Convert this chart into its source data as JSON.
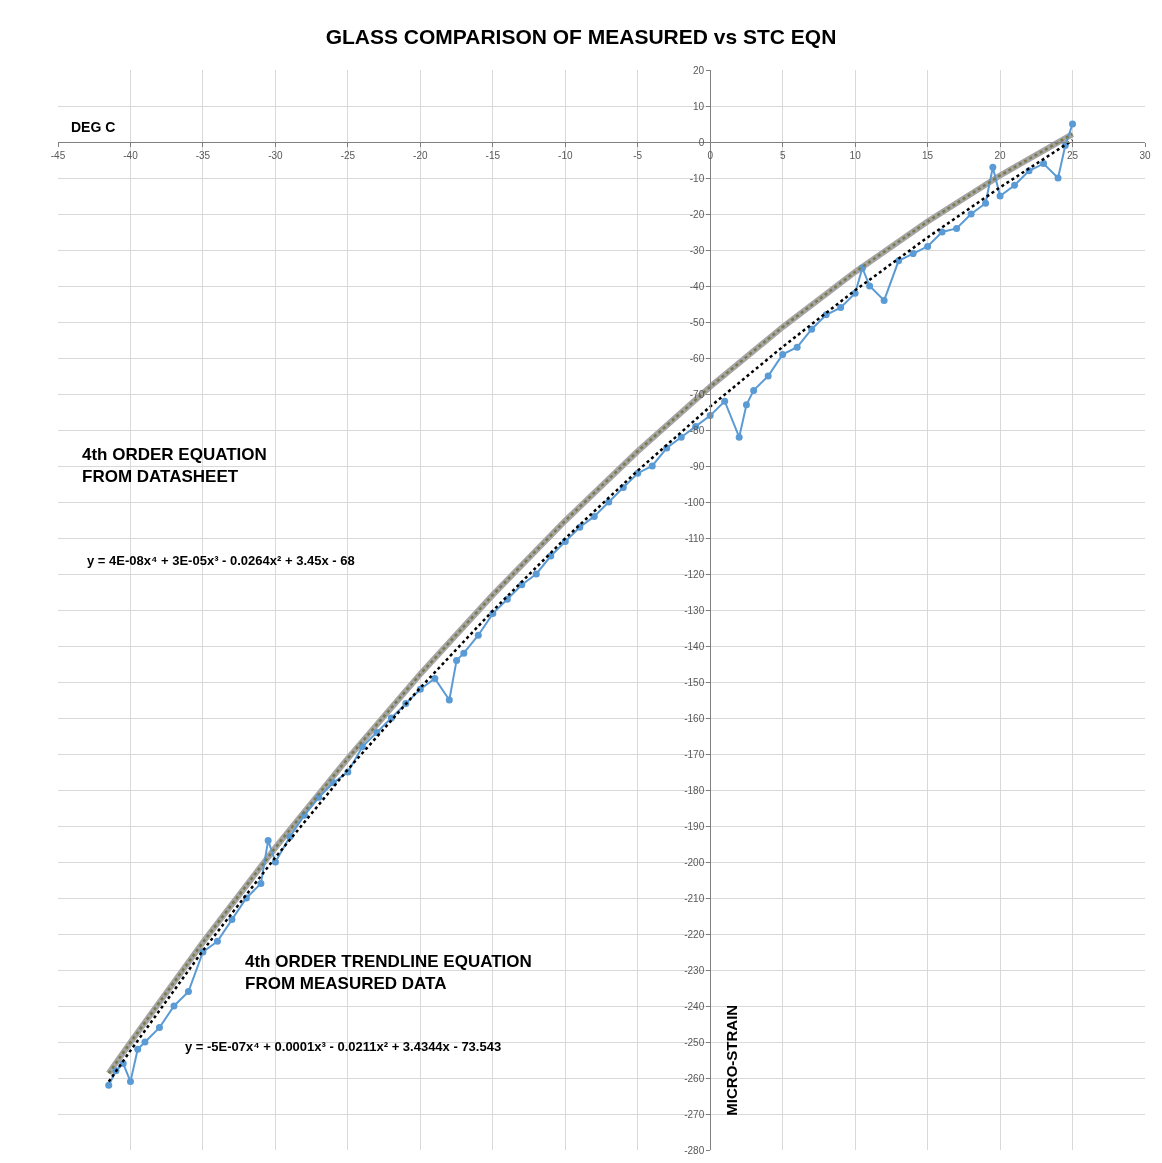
{
  "chart_data": {
    "type": "line",
    "title": "GLASS COMPARISON OF MEASURED vs STC EQN",
    "xlabel": "DEG C",
    "ylabel": "MICRO-STRAIN",
    "xlim": [
      -45,
      30
    ],
    "xticks": [
      -45,
      -40,
      -35,
      -30,
      -25,
      -20,
      -15,
      -10,
      -5,
      0,
      5,
      10,
      15,
      20,
      25,
      30
    ],
    "ylim": [
      -280,
      20
    ],
    "yticks": [
      -280,
      -270,
      -260,
      -250,
      -240,
      -230,
      -220,
      -210,
      -200,
      -190,
      -180,
      -170,
      -160,
      -150,
      -140,
      -130,
      -120,
      -110,
      -100,
      -90,
      -80,
      -70,
      -60,
      -50,
      -40,
      -30,
      -20,
      -10,
      0,
      10,
      20
    ],
    "grid": true,
    "annotations": [
      "4th ORDER EQUATION\nFROM DATASHEET",
      "y = 4E-08x⁴ + 3E-05x³ - 0.0264x² + 3.45x - 68",
      "4th ORDER TRENDLINE EQUATION\nFROM MEASURED DATA",
      "y = -5E-07x⁴ + 0.0001x³ - 0.0211x² + 3.4344x - 73.543"
    ],
    "series": [
      {
        "color": "#a5a5a5",
        "line_style": "solid",
        "marker": "none",
        "x": [
          -41.5,
          -40,
          -35,
          -30,
          -25,
          -20,
          -15,
          -10,
          -5,
          0,
          5,
          10,
          15,
          20,
          25
        ],
        "values": [
          -258.7,
          -250.1,
          -222.3,
          -196,
          -171.2,
          -147.8,
          -125.8,
          -105.2,
          -85.9,
          -68,
          -51.4,
          -36.1,
          -22.1,
          -9.3,
          2.2
        ]
      },
      {
        "color": "#5b9bd5",
        "line_style": "solid",
        "marker": "circle",
        "x": [
          -41.5,
          -41,
          -40.5,
          -40,
          -39.5,
          -39,
          -38,
          -37,
          -36,
          -35,
          -34,
          -33,
          -32,
          -31,
          -30.5,
          -30,
          -29,
          -28,
          -27,
          -26,
          -25,
          -24,
          -23,
          -22,
          -21,
          -20,
          -19,
          -18,
          -17.5,
          -17,
          -16,
          -15,
          -14,
          -13,
          -12,
          -11,
          -10,
          -9,
          -8,
          -7,
          -6,
          -5,
          -4,
          -3,
          -2,
          -1,
          0,
          1,
          2,
          2.5,
          3,
          4,
          5,
          6,
          7,
          8,
          9,
          10,
          10.5,
          11,
          12,
          13,
          14,
          15,
          16,
          17,
          18,
          19,
          19.5,
          20,
          21,
          22,
          23,
          24,
          24.5,
          25
        ],
        "values": [
          -262,
          -258,
          -256,
          -261,
          -252,
          -250,
          -246,
          -240,
          -236,
          -225,
          -222,
          -216,
          -210,
          -206,
          -194,
          -200,
          -193,
          -187,
          -182,
          -178,
          -175,
          -168,
          -164,
          -160,
          -156,
          -152,
          -149,
          -155,
          -144,
          -142,
          -137,
          -131,
          -127,
          -123,
          -120,
          -115,
          -111,
          -107,
          -104,
          -100,
          -96,
          -92,
          -90,
          -85,
          -82,
          -79,
          -76,
          -72,
          -82,
          -73,
          -69,
          -65,
          -59,
          -57,
          -52,
          -48,
          -46,
          -42,
          -35,
          -40,
          -44,
          -33,
          -31,
          -29,
          -25,
          -24,
          -20,
          -17,
          -7,
          -15,
          -12,
          -8,
          -6,
          -10,
          -1,
          5
        ]
      },
      {
        "color": "#7a7a4a",
        "line_style": "dotted",
        "marker": "none",
        "x": [
          -41.5,
          -40,
          -35,
          -30,
          -25,
          -20,
          -15,
          -10,
          -5,
          0,
          5,
          10,
          15,
          20,
          25
        ],
        "values": [
          -258.7,
          -250.1,
          -222.3,
          -196,
          -171.2,
          -147.8,
          -125.8,
          -105.2,
          -85.9,
          -68,
          -51.4,
          -36.1,
          -22.1,
          -9.3,
          2.2
        ]
      },
      {
        "color": "#000000",
        "line_style": "dotted",
        "marker": "none",
        "x": [
          -41.5,
          -40,
          -35,
          -30,
          -25,
          -20,
          -15,
          -10,
          -5,
          0,
          5,
          10,
          15,
          20,
          25
        ],
        "values": [
          -261,
          -252.4,
          -224.6,
          -198.7,
          -174.3,
          -151.6,
          -130.2,
          -110.1,
          -91.3,
          -73.5,
          -56.9,
          -41.2,
          -26.5,
          -12.6,
          0.5
        ]
      }
    ]
  }
}
